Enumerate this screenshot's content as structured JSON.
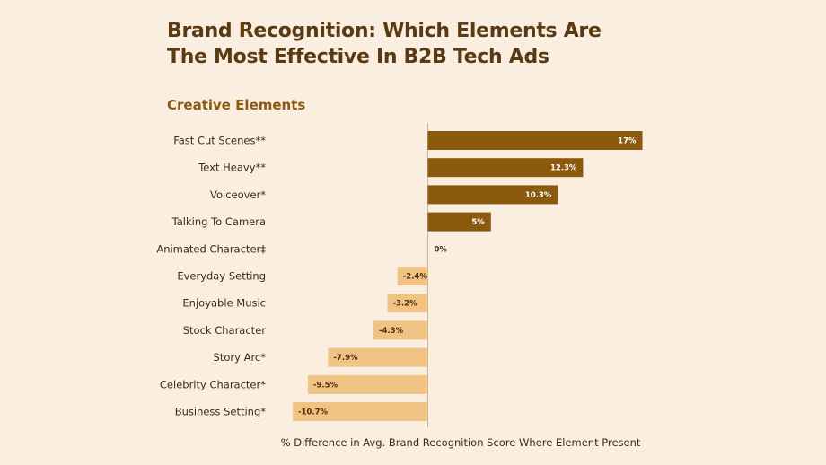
{
  "chart_data": {
    "type": "bar",
    "orientation": "horizontal",
    "title_lines": [
      "Brand Recognition: Which Elements Are",
      "The Most Effective In B2B Tech Ads"
    ],
    "subtitle": "Creative Elements",
    "xlabel": "% Difference in Avg. Brand Recognition Score Where Element Present",
    "categories": [
      "Fast Cut Scenes**",
      "Text Heavy**",
      "Voiceover*",
      "Talking To Camera",
      "Animated Character‡",
      "Everyday Setting",
      "Enjoyable Music",
      "Stock Character",
      "Story Arc*",
      "Celebrity Character*",
      "Business Setting*"
    ],
    "values": [
      17,
      12.3,
      10.3,
      5,
      0,
      -2.4,
      -3.2,
      -4.3,
      -7.9,
      -9.5,
      -10.7
    ],
    "value_labels": [
      "17%",
      "12.3%",
      "10.3%",
      "5%",
      "0%",
      "-2.4%",
      "-3.2%",
      "-4.3%",
      "-7.9%",
      "-9.5%",
      "-10.7%"
    ],
    "colors": {
      "positive": "#8b5a0c",
      "negative": "#f0c283",
      "axis": "#bfb3a6"
    },
    "grid": false,
    "legend": "none"
  }
}
